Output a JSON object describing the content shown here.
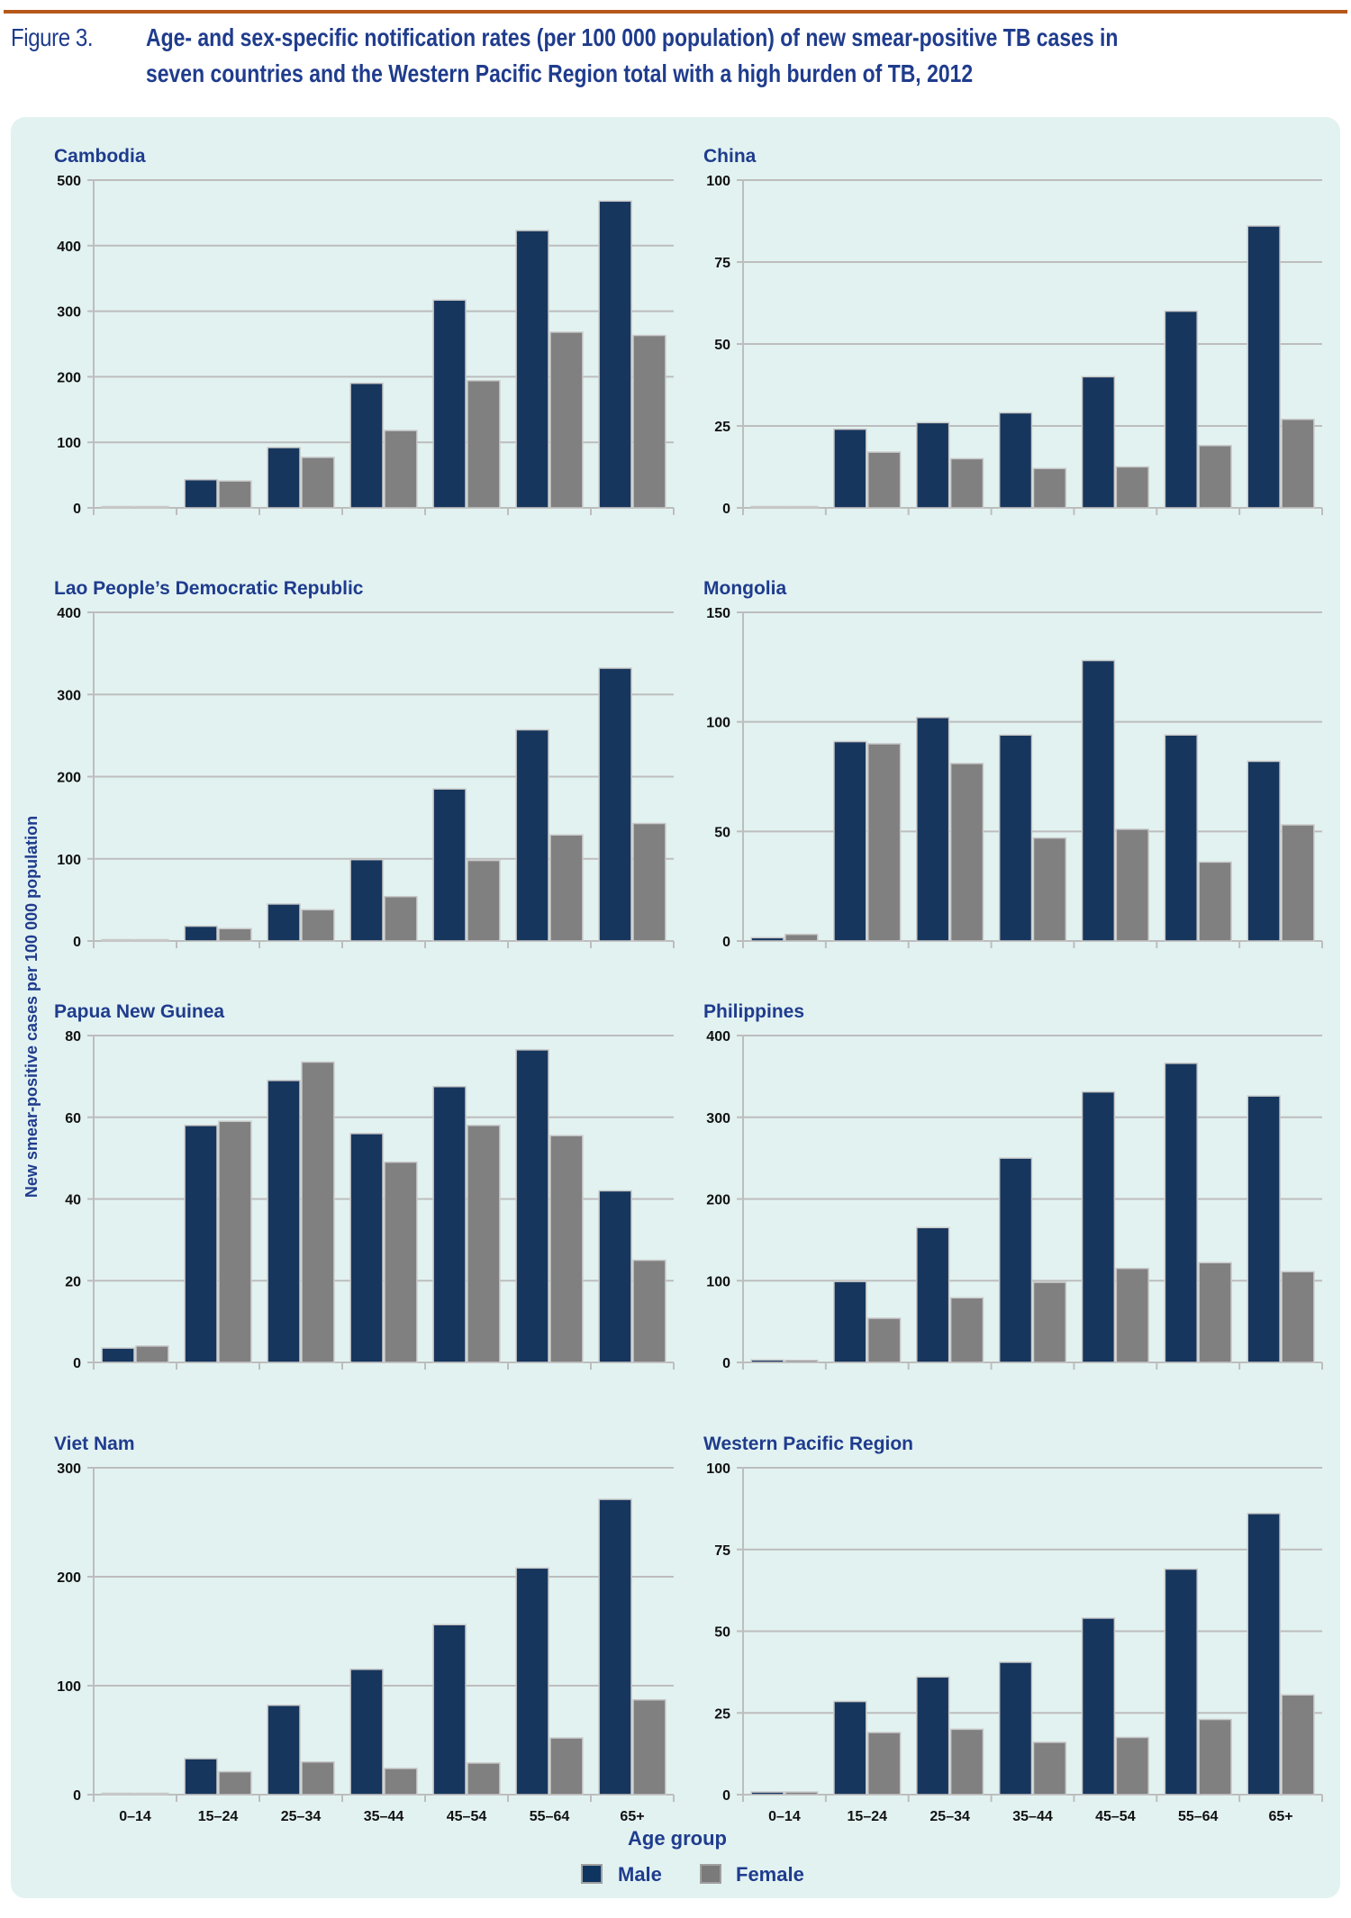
{
  "figure": {
    "label": "Figure 3.",
    "title_line1": "Age- and sex-specific notification rates (per 100 000 population) of new smear-positive TB cases in",
    "title_line2": "seven countries and the Western Pacific Region total with a high burden of TB, 2012"
  },
  "colors": {
    "male": "#17365d",
    "female": "#808080",
    "accent": "#b5581a",
    "text": "#1f3c8d",
    "panel": "#e2f2f1"
  },
  "chart_data": {
    "type": "bar",
    "ylabel": "New smear-positive cases per 100 000 population",
    "xlabel": "Age group",
    "categories": [
      "0–14",
      "15–24",
      "25–34",
      "35–44",
      "45–54",
      "55–64",
      "65+"
    ],
    "legend": {
      "position": "bottom-center",
      "entries": [
        "Male",
        "Female"
      ]
    },
    "panels": [
      {
        "title": "Cambodia",
        "ylim": [
          0,
          500
        ],
        "yticks": [
          "0",
          "100",
          "200",
          "300",
          "400",
          "500"
        ],
        "series": [
          {
            "name": "Male",
            "values": [
              1,
              43,
              92,
              190,
              317,
              423,
              468
            ]
          },
          {
            "name": "Female",
            "values": [
              1,
              41,
              77,
              118,
              194,
              268,
              263
            ]
          }
        ]
      },
      {
        "title": "China",
        "ylim": [
          0,
          100
        ],
        "yticks": [
          "0",
          "25",
          "50",
          "75",
          "100"
        ],
        "series": [
          {
            "name": "Male",
            "values": [
              0.3,
              24,
              26,
              29,
              40,
              60,
              86
            ]
          },
          {
            "name": "Female",
            "values": [
              0.4,
              17,
              15,
              12,
              12.5,
              19,
              27
            ]
          }
        ]
      },
      {
        "title": "Lao People’s Democratic Republic",
        "ylim": [
          0,
          400
        ],
        "yticks": [
          "0",
          "100",
          "200",
          "300",
          "400"
        ],
        "series": [
          {
            "name": "Male",
            "values": [
              0.5,
              18,
              45,
              99,
              185,
              257,
              332
            ]
          },
          {
            "name": "Female",
            "values": [
              0.5,
              15,
              38,
              54,
              98,
              129,
              143
            ]
          }
        ]
      },
      {
        "title": "Mongolia",
        "ylim": [
          0,
          150
        ],
        "yticks": [
          "0",
          "50",
          "100",
          "150"
        ],
        "series": [
          {
            "name": "Male",
            "values": [
              1.5,
              91,
              102,
              94,
              128,
              94,
              82
            ]
          },
          {
            "name": "Female",
            "values": [
              3,
              90,
              81,
              47,
              51,
              36,
              53
            ]
          }
        ]
      },
      {
        "title": "Papua New Guinea",
        "ylim": [
          0,
          80
        ],
        "yticks": [
          "0",
          "20",
          "40",
          "60",
          "80"
        ],
        "series": [
          {
            "name": "Male",
            "values": [
              3.5,
              58,
              69,
              56,
              67.5,
              76.5,
              42
            ]
          },
          {
            "name": "Female",
            "values": [
              4,
              59,
              73.5,
              49,
              58,
              55.5,
              25
            ]
          }
        ]
      },
      {
        "title": "Philippines",
        "ylim": [
          0,
          400
        ],
        "yticks": [
          "0",
          "100",
          "200",
          "300",
          "400"
        ],
        "series": [
          {
            "name": "Male",
            "values": [
              3,
              99,
              165,
              250,
              331,
              366,
              326
            ]
          },
          {
            "name": "Female",
            "values": [
              2.5,
              54,
              79,
              98,
              115,
              122,
              111
            ]
          }
        ]
      },
      {
        "title": "Viet Nam",
        "ylim": [
          0,
          300
        ],
        "yticks": [
          "0",
          "100",
          "200",
          "300"
        ],
        "series": [
          {
            "name": "Male",
            "values": [
              0.3,
              33,
              82,
              115,
              156,
              208,
              271
            ]
          },
          {
            "name": "Female",
            "values": [
              0.5,
              21,
              30,
              24,
              29,
              52,
              87
            ]
          }
        ]
      },
      {
        "title": "Western Pacific Region",
        "ylim": [
          0,
          100
        ],
        "yticks": [
          "0",
          "25",
          "50",
          "75",
          "100"
        ],
        "series": [
          {
            "name": "Male",
            "values": [
              0.8,
              28.5,
              36,
              40.5,
              54,
              69,
              86
            ]
          },
          {
            "name": "Female",
            "values": [
              0.8,
              19,
              20,
              16,
              17.5,
              23,
              30.5
            ]
          }
        ]
      }
    ]
  }
}
